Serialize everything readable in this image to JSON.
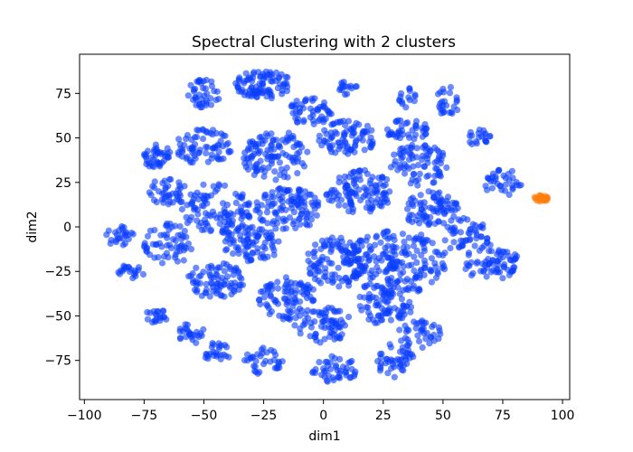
{
  "chart_data": {
    "type": "scatter",
    "title": "Spectral Clustering with 2 clusters",
    "xlabel": "dim1",
    "ylabel": "dim2",
    "xlim": [
      -102,
      103
    ],
    "ylim": [
      -97,
      97
    ],
    "xticks": [
      -100,
      -75,
      -50,
      -25,
      0,
      25,
      50,
      75,
      100
    ],
    "yticks": [
      -75,
      -50,
      -25,
      0,
      25,
      50,
      75
    ],
    "grid": false,
    "series": [
      {
        "color": "#0a3dff",
        "regions": [
          {
            "x": -25,
            "y": 80,
            "rx": 12,
            "ry": 8,
            "n": 90
          },
          {
            "x": -50,
            "y": 75,
            "rx": 7,
            "ry": 8,
            "n": 40
          },
          {
            "x": -70,
            "y": 40,
            "rx": 6,
            "ry": 7,
            "n": 40
          },
          {
            "x": -85,
            "y": -5,
            "rx": 6,
            "ry": 6,
            "n": 25
          },
          {
            "x": -80,
            "y": -25,
            "rx": 6,
            "ry": 4,
            "n": 20
          },
          {
            "x": -70,
            "y": -50,
            "rx": 5,
            "ry": 4,
            "n": 20
          },
          {
            "x": -55,
            "y": -60,
            "rx": 6,
            "ry": 6,
            "n": 25
          },
          {
            "x": -45,
            "y": -70,
            "rx": 7,
            "ry": 5,
            "n": 25
          },
          {
            "x": -25,
            "y": -75,
            "rx": 8,
            "ry": 8,
            "n": 35
          },
          {
            "x": 5,
            "y": -80,
            "rx": 10,
            "ry": 8,
            "n": 45
          },
          {
            "x": 30,
            "y": -75,
            "rx": 8,
            "ry": 10,
            "n": 45
          },
          {
            "x": 40,
            "y": -60,
            "rx": 10,
            "ry": 8,
            "n": 40
          },
          {
            "x": 10,
            "y": 80,
            "rx": 4,
            "ry": 6,
            "n": 15
          },
          {
            "x": 35,
            "y": 72,
            "rx": 4,
            "ry": 6,
            "n": 15
          },
          {
            "x": 52,
            "y": 70,
            "rx": 5,
            "ry": 9,
            "n": 25
          },
          {
            "x": 65,
            "y": 50,
            "rx": 5,
            "ry": 5,
            "n": 20
          },
          {
            "x": 75,
            "y": 25,
            "rx": 8,
            "ry": 8,
            "n": 35
          },
          {
            "x": 70,
            "y": -20,
            "rx": 12,
            "ry": 10,
            "n": 70
          },
          {
            "x": 60,
            "y": -5,
            "rx": 10,
            "ry": 10,
            "n": 50
          },
          {
            "x": 30,
            "y": -20,
            "rx": 22,
            "ry": 18,
            "n": 200
          },
          {
            "x": 5,
            "y": -20,
            "rx": 12,
            "ry": 15,
            "n": 110
          },
          {
            "x": -15,
            "y": -40,
            "rx": 12,
            "ry": 12,
            "n": 90
          },
          {
            "x": -45,
            "y": -30,
            "rx": 12,
            "ry": 10,
            "n": 80
          },
          {
            "x": -65,
            "y": -10,
            "rx": 10,
            "ry": 12,
            "n": 60
          },
          {
            "x": -45,
            "y": 10,
            "rx": 15,
            "ry": 15,
            "n": 110
          },
          {
            "x": -50,
            "y": 45,
            "rx": 12,
            "ry": 10,
            "n": 70
          },
          {
            "x": -20,
            "y": 40,
            "rx": 14,
            "ry": 14,
            "n": 110
          },
          {
            "x": -15,
            "y": 10,
            "rx": 14,
            "ry": 12,
            "n": 110
          },
          {
            "x": 10,
            "y": 50,
            "rx": 12,
            "ry": 10,
            "n": 80
          },
          {
            "x": 15,
            "y": 20,
            "rx": 14,
            "ry": 12,
            "n": 110
          },
          {
            "x": 40,
            "y": 35,
            "rx": 12,
            "ry": 12,
            "n": 80
          },
          {
            "x": 45,
            "y": 10,
            "rx": 12,
            "ry": 10,
            "n": 80
          },
          {
            "x": 35,
            "y": 55,
            "rx": 10,
            "ry": 6,
            "n": 40
          },
          {
            "x": 0,
            "y": -55,
            "rx": 12,
            "ry": 10,
            "n": 70
          },
          {
            "x": 25,
            "y": -45,
            "rx": 12,
            "ry": 10,
            "n": 70
          },
          {
            "x": -30,
            "y": -10,
            "rx": 12,
            "ry": 10,
            "n": 80
          },
          {
            "x": -5,
            "y": 65,
            "rx": 10,
            "ry": 8,
            "n": 50
          },
          {
            "x": -65,
            "y": 20,
            "rx": 8,
            "ry": 8,
            "n": 40
          }
        ]
      },
      {
        "color": "#ff7f0e",
        "regions": [
          {
            "x": 91,
            "y": 16,
            "rx": 3,
            "ry": 2,
            "n": 30
          }
        ]
      }
    ]
  }
}
